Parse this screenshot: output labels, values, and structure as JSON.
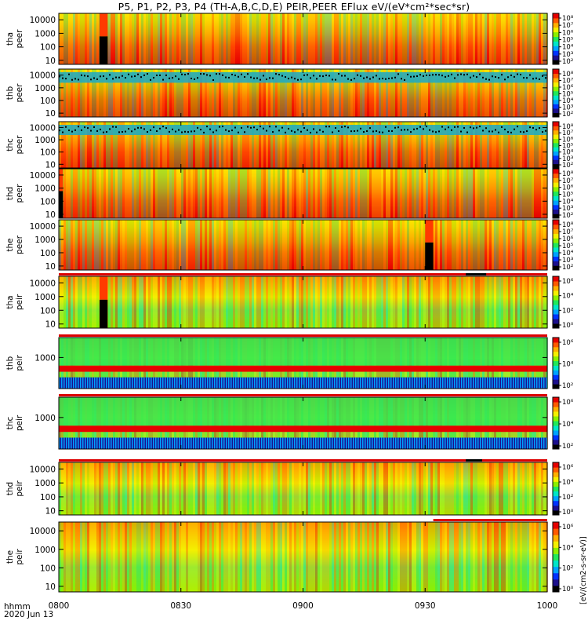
{
  "title": "P5, P1, P2, P3, P4 (TH-A,B,C,D,E) PEIR,PEER EFlux eV/(eV*cm²*sec*sr)",
  "x_axis": {
    "label_line1": "hhmm",
    "label_line2": "2020 Jun 13"
  },
  "colorbar_units": "[eV/(cm2-s-sr-eV)]",
  "colors": {
    "colormap": [
      "#000000",
      "#1c0f8c",
      "#0033ff",
      "#00a2ff",
      "#00e6c8",
      "#21e85a",
      "#8cf000",
      "#f4f000",
      "#ffb000",
      "#ff5a00",
      "#e60000"
    ],
    "flag_red": "#dd0000",
    "flag_black": "#000000"
  },
  "chart_data": {
    "type": "heatmap",
    "x_ticks": [
      "0800",
      "0830",
      "0900",
      "0930",
      "1000"
    ],
    "xlim": [
      "08:00",
      "10:00"
    ],
    "panels": [
      {
        "ylabel_1": "tha",
        "ylabel_2": "peer",
        "y_scale": "log",
        "y_ticks": [
          "10",
          "100",
          "1000",
          "10000"
        ],
        "ylim": [
          5,
          30000
        ],
        "cbar_ticks": [
          "10⁸",
          "10⁷",
          "10⁶",
          "10⁵",
          "10⁴",
          "10³",
          "10²"
        ],
        "cbar_range": [
          100,
          100000000
        ],
        "flag_bar": [],
        "gaps": [
          {
            "start": "08:10",
            "end": "08:12"
          }
        ]
      },
      {
        "ylabel_1": "thb",
        "ylabel_2": "peer",
        "y_scale": "log",
        "y_ticks": [
          "10",
          "100",
          "1000",
          "10000"
        ],
        "ylim": [
          5,
          30000
        ],
        "cbar_ticks": [
          "10⁸",
          "10⁷",
          "10⁶",
          "10⁵",
          "10⁴",
          "10³",
          "10²"
        ],
        "cbar_range": [
          100,
          100000000
        ],
        "flag_bar": [],
        "gaps": []
      },
      {
        "ylabel_1": "thc",
        "ylabel_2": "peer",
        "y_scale": "log",
        "y_ticks": [
          "10",
          "100",
          "1000",
          "10000"
        ],
        "ylim": [
          5,
          30000
        ],
        "cbar_ticks": [
          "10⁸",
          "10⁷",
          "10⁶",
          "10⁵",
          "10⁴",
          "10³",
          "10²"
        ],
        "cbar_range": [
          100,
          100000000
        ],
        "flag_bar": [],
        "gaps": []
      },
      {
        "ylabel_1": "thd",
        "ylabel_2": "peer",
        "y_scale": "log",
        "y_ticks": [
          "10",
          "100",
          "1000",
          "10000"
        ],
        "ylim": [
          5,
          30000
        ],
        "cbar_ticks": [
          "10⁸",
          "10⁷",
          "10⁶",
          "10⁵",
          "10⁴",
          "10³",
          "10²"
        ],
        "cbar_range": [
          100,
          100000000
        ],
        "flag_bar": [],
        "gaps": [
          {
            "start": "08:00",
            "end": "08:01"
          }
        ]
      },
      {
        "ylabel_1": "the",
        "ylabel_2": "peer",
        "y_scale": "log",
        "y_ticks": [
          "10",
          "100",
          "1000",
          "10000"
        ],
        "ylim": [
          5,
          30000
        ],
        "cbar_ticks": [
          "10⁸",
          "10⁷",
          "10⁶",
          "10⁵",
          "10⁴",
          "10³",
          "10²"
        ],
        "cbar_range": [
          100,
          100000000
        ],
        "flag_bar": [],
        "gaps": [
          {
            "start": "09:30",
            "end": "09:32"
          }
        ]
      },
      {
        "ylabel_1": "tha",
        "ylabel_2": "peir",
        "y_scale": "log",
        "y_ticks": [
          "10",
          "100",
          "1000",
          "10000"
        ],
        "ylim": [
          5,
          30000
        ],
        "cbar_ticks": [
          "10⁶",
          "10⁴",
          "10²",
          "10⁰"
        ],
        "cbar_range": [
          1,
          1000000
        ],
        "flag_bar": [
          {
            "start": "08:00",
            "end": "10:00",
            "color": "red"
          },
          {
            "start": "09:40",
            "end": "09:45",
            "color": "black"
          }
        ],
        "gaps": [
          {
            "start": "08:10",
            "end": "08:12"
          }
        ]
      },
      {
        "ylabel_1": "thb",
        "ylabel_2": "peir",
        "y_scale": "log",
        "y_ticks": [
          "1000"
        ],
        "ylim": [
          5,
          30000
        ],
        "cbar_ticks": [
          "10⁶",
          "10⁴",
          "10²"
        ],
        "cbar_range": [
          100,
          1000000
        ],
        "flag_bar": [
          {
            "start": "08:00",
            "end": "10:00",
            "color": "red"
          }
        ],
        "gaps": []
      },
      {
        "ylabel_1": "thc",
        "ylabel_2": "peir",
        "y_scale": "log",
        "y_ticks": [
          "1000"
        ],
        "ylim": [
          5,
          30000
        ],
        "cbar_ticks": [
          "10⁶",
          "10⁴",
          "10²"
        ],
        "cbar_range": [
          100,
          1000000
        ],
        "flag_bar": [
          {
            "start": "08:00",
            "end": "10:00",
            "color": "red"
          }
        ],
        "gaps": []
      },
      {
        "ylabel_1": "thd",
        "ylabel_2": "peir",
        "y_scale": "log",
        "y_ticks": [
          "10",
          "100",
          "1000",
          "10000"
        ],
        "ylim": [
          5,
          30000
        ],
        "cbar_ticks": [
          "10⁶",
          "10⁴",
          "10²",
          "10⁰"
        ],
        "cbar_range": [
          1,
          1000000
        ],
        "flag_bar": [
          {
            "start": "08:00",
            "end": "10:00",
            "color": "red"
          },
          {
            "start": "09:40",
            "end": "09:44",
            "color": "black"
          }
        ],
        "gaps": []
      },
      {
        "ylabel_1": "the",
        "ylabel_2": "peir",
        "y_scale": "log",
        "y_ticks": [
          "10",
          "100",
          "1000",
          "10000"
        ],
        "ylim": [
          5,
          30000
        ],
        "cbar_ticks": [
          "10⁶",
          "10⁴",
          "10²",
          "10⁰"
        ],
        "cbar_range": [
          1,
          1000000
        ],
        "flag_bar": [
          {
            "start": "09:32",
            "end": "10:00",
            "color": "red"
          }
        ],
        "gaps": []
      }
    ]
  }
}
